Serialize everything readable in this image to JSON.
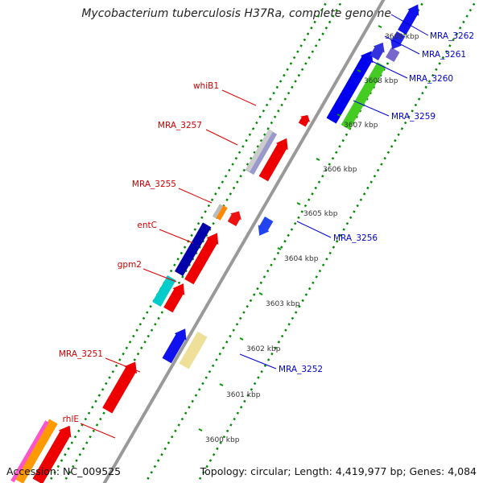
{
  "title": "Mycobacterium tuberculosis H37Ra, complete genome",
  "footer": {
    "accession": "Accession: NC_009525",
    "topology": "Topology: circular; Length: 4,419,977 bp; Genes: 4,084"
  },
  "colors": {
    "forward_label": "#cc0000",
    "reverse_label": "#0000cc",
    "backbone": "#999999",
    "dotted_track": "#008800",
    "tick": "#009900"
  },
  "ticks": [
    "3600 kbp",
    "3601 kbp",
    "3602 kbp",
    "3603 kbp",
    "3604 kbp",
    "3605 kbp",
    "3606 kbp",
    "3607 kbp",
    "3608 kbp",
    "3609 kbp"
  ],
  "labels_forward": [
    "whiB1",
    "MRA_3257",
    "MRA_3255",
    "entC",
    "gpm2",
    "MRA_3251",
    "rhlE"
  ],
  "labels_reverse": [
    "MRA_3262",
    "MRA_3261",
    "MRA_3260",
    "MRA_3259",
    "MRA_3256",
    "MRA_3252"
  ]
}
